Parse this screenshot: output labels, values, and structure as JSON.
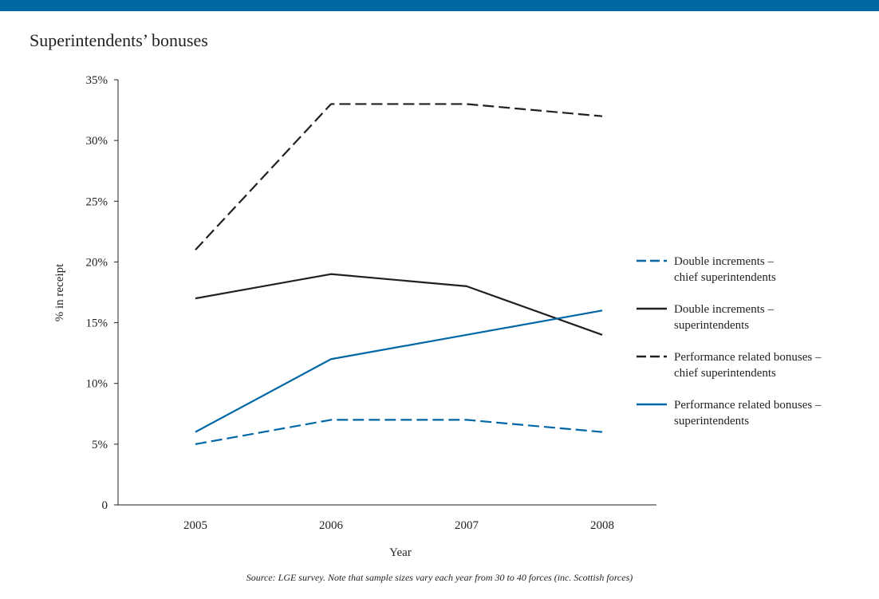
{
  "header": {
    "bar_color": "#0067a5"
  },
  "chart_data": {
    "type": "line",
    "title": "Superintendents’ bonuses",
    "xlabel": "Year",
    "ylabel": "% in receipt",
    "x": [
      "2005",
      "2006",
      "2007",
      "2008"
    ],
    "y_ticks": [
      0,
      5,
      10,
      15,
      20,
      25,
      30,
      35
    ],
    "y_tick_labels": [
      "0",
      "5%",
      "10%",
      "15%",
      "20%",
      "25%",
      "30%",
      "35%"
    ],
    "ylim": [
      0,
      35
    ],
    "grid": false,
    "legend_position": "right",
    "series": [
      {
        "name": "Double increments – chief superintendents",
        "name_lines": [
          "Double increments –",
          "chief superintendents"
        ],
        "values": [
          5,
          7,
          7,
          6
        ],
        "color": "#0067a5",
        "dashed": true
      },
      {
        "name": "Double increments – superintendents",
        "name_lines": [
          "Double increments –",
          "superintendents"
        ],
        "values": [
          17,
          19,
          18,
          14
        ],
        "color": "#231f20",
        "dashed": false
      },
      {
        "name": "Performance related bonuses – chief superintendents",
        "name_lines": [
          "Performance related bonuses –",
          "chief superintendents"
        ],
        "values": [
          21,
          33,
          33,
          32
        ],
        "color": "#231f20",
        "dashed": true
      },
      {
        "name": "Performance related bonuses – superintendents",
        "name_lines": [
          "Performance related bonuses –",
          "superintendents"
        ],
        "values": [
          6,
          12,
          14,
          16
        ],
        "color": "#0067a5",
        "dashed": false
      }
    ]
  },
  "source": "Source: LGE survey. Note that sample sizes vary each year from 30 to 40 forces (inc. Scottish forces)"
}
